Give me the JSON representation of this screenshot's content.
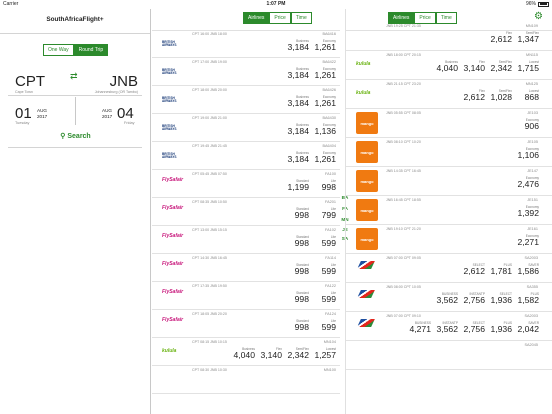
{
  "status": {
    "carrier": "Carrier",
    "time": "1:07 PM",
    "battery": "96%"
  },
  "app": {
    "title": "SouthAfricaFlight+"
  },
  "trip_type": {
    "one_way": "One Way",
    "round_trip": "Round Trip",
    "selected": "round_trip"
  },
  "route": {
    "from_code": "CPT",
    "from_city": "Cape Town",
    "to_code": "JNB",
    "to_city": "Johannesburg (OR Tambo)"
  },
  "dates": {
    "depart_day": "01",
    "depart_month": "AUG",
    "depart_year": "2017",
    "depart_weekday": "Tuesday",
    "return_day": "04",
    "return_month": "AUG",
    "return_year": "2017",
    "return_weekday": "Friday"
  },
  "search_label": "Search",
  "sort_tabs": [
    "Airlines",
    "Price",
    "Time"
  ],
  "sort_selected": "Airlines",
  "airline_index": [
    "BA",
    "FA",
    "MN",
    "JE",
    "SA"
  ],
  "outbound": [
    {
      "logo": "ba",
      "logo_text": "BRITISH AIRWAYS",
      "dep": "CPT 16:00",
      "arr": "JNB 18:00",
      "flight": "BA6416",
      "fares": [
        [
          "Business",
          "3,184"
        ],
        [
          "Economy",
          "1,261"
        ]
      ]
    },
    {
      "logo": "ba",
      "logo_text": "BRITISH AIRWAYS",
      "dep": "CPT 17:00",
      "arr": "JNB 19:00",
      "flight": "BA6422",
      "fares": [
        [
          "Business",
          "3,184"
        ],
        [
          "Economy",
          "1,261"
        ]
      ]
    },
    {
      "logo": "ba",
      "logo_text": "BRITISH AIRWAYS",
      "dep": "CPT 18:00",
      "arr": "JNB 20:00",
      "flight": "BA6426",
      "fares": [
        [
          "Business",
          "3,184"
        ],
        [
          "Economy",
          "1,261"
        ]
      ]
    },
    {
      "logo": "ba",
      "logo_text": "BRITISH AIRWAYS",
      "dep": "CPT 19:00",
      "arr": "JNB 21:00",
      "flight": "BA6430",
      "fares": [
        [
          "Business",
          "3,184"
        ],
        [
          "Economy",
          "1,136"
        ]
      ]
    },
    {
      "logo": "ba",
      "logo_text": "BRITISH AIRWAYS",
      "dep": "CPT 19:45",
      "arr": "JNB 21:45",
      "flight": "BA6404",
      "fares": [
        [
          "Business",
          "3,184"
        ],
        [
          "Economy",
          "1,261"
        ]
      ]
    },
    {
      "logo": "fs",
      "logo_text": "FlySafair",
      "dep": "CPT 05:45",
      "arr": "JNB 07:50",
      "flight": "FA100",
      "fares": [
        [
          "Standard",
          "1,199"
        ],
        [
          "Lite",
          "998"
        ]
      ]
    },
    {
      "logo": "fs",
      "logo_text": "FlySafair",
      "dep": "CPT 08:35",
      "arr": "JNB 10:50",
      "flight": "FA201",
      "fares": [
        [
          "Standard",
          "998"
        ],
        [
          "Lite",
          "799"
        ]
      ]
    },
    {
      "logo": "fs",
      "logo_text": "FlySafair",
      "dep": "CPT 13:00",
      "arr": "JNB 15:15",
      "flight": "FA102",
      "fares": [
        [
          "Standard",
          "998"
        ],
        [
          "Lite",
          "599"
        ]
      ]
    },
    {
      "logo": "fs",
      "logo_text": "FlySafair",
      "dep": "CPT 14:30",
      "arr": "JNB 16:45",
      "flight": "FA114",
      "fares": [
        [
          "Standard",
          "998"
        ],
        [
          "Lite",
          "599"
        ]
      ]
    },
    {
      "logo": "fs",
      "logo_text": "FlySafair",
      "dep": "CPT 17:35",
      "arr": "JNB 19:50",
      "flight": "FA122",
      "fares": [
        [
          "Standard",
          "998"
        ],
        [
          "Lite",
          "599"
        ]
      ]
    },
    {
      "logo": "fs",
      "logo_text": "FlySafair",
      "dep": "CPT 18:05",
      "arr": "JNB 20:20",
      "flight": "FA124",
      "fares": [
        [
          "Standard",
          "998"
        ],
        [
          "Lite",
          "599"
        ]
      ]
    },
    {
      "logo": "kulula",
      "logo_text": "kulula",
      "dep": "CPT 08:15",
      "arr": "JNB 10:15",
      "flight": "MN104",
      "fares": [
        [
          "Business",
          "4,040"
        ],
        [
          "Flex",
          "3,140"
        ],
        [
          "SemiFlex",
          "2,342"
        ],
        [
          "Lowest",
          "1,257"
        ]
      ]
    },
    {
      "logo": "",
      "logo_text": "",
      "dep": "CPT 08:30",
      "arr": "JNB 10:30",
      "flight": "MN100",
      "fares": []
    }
  ],
  "return": [
    {
      "logo": "",
      "logo_text": "",
      "dep": "JNB 19:25",
      "arr": "CPT 21:35",
      "flight": "MN109",
      "fares": [
        [
          "Flex",
          "2,612"
        ],
        [
          "SemiFlex",
          "1,347"
        ]
      ]
    },
    {
      "logo": "kulula",
      "logo_text": "kulula",
      "dep": "JNB 18:00",
      "arr": "CPT 20:15",
      "flight": "MN115",
      "fares": [
        [
          "Business",
          "4,040"
        ],
        [
          "Flex",
          "3,140"
        ],
        [
          "SemiFlex",
          "2,342"
        ],
        [
          "Lowest",
          "1,715"
        ]
      ]
    },
    {
      "logo": "kulula",
      "logo_text": "kulula",
      "dep": "JNB 21:15",
      "arr": "CPT 23:20",
      "flight": "MN125",
      "fares": [
        [
          "Flex",
          "2,612"
        ],
        [
          "SemiFlex",
          "1,028"
        ],
        [
          "Lowest",
          "868"
        ]
      ]
    },
    {
      "logo": "mango",
      "logo_text": "mango",
      "dep": "JNB 05:55",
      "arr": "CPT 08:05",
      "flight": "JE103",
      "fares": [
        [
          "Economy",
          "906"
        ]
      ]
    },
    {
      "logo": "mango",
      "logo_text": "mango",
      "dep": "JNB 08:10",
      "arr": "CPT 10:20",
      "flight": "JE105",
      "fares": [
        [
          "Economy",
          "1,106"
        ]
      ]
    },
    {
      "logo": "mango",
      "logo_text": "mango",
      "dep": "JNB 14:35",
      "arr": "CPT 16:45",
      "flight": "JE147",
      "fares": [
        [
          "Economy",
          "2,476"
        ]
      ]
    },
    {
      "logo": "mango",
      "logo_text": "mango",
      "dep": "JNB 16:45",
      "arr": "CPT 18:55",
      "flight": "JE151",
      "fares": [
        [
          "Economy",
          "1,392"
        ]
      ]
    },
    {
      "logo": "mango",
      "logo_text": "mango",
      "dep": "JNB 19:10",
      "arr": "CPT 21:20",
      "flight": "JE161",
      "fares": [
        [
          "Economy",
          "2,271"
        ]
      ]
    },
    {
      "logo": "saa",
      "logo_text": "South African Airways",
      "dep": "JNB 07:00",
      "arr": "CPT 09:05",
      "flight": "SA2003",
      "fares": [
        [
          "SELECT",
          "2,612"
        ],
        [
          "PLUS",
          "1,781"
        ],
        [
          "SAVER",
          "1,586"
        ]
      ]
    },
    {
      "logo": "saa",
      "logo_text": "South African Airways",
      "dep": "JNB 08:00",
      "arr": "CPT 10:05",
      "flight": "SA355",
      "fares": [
        [
          "BUSINESS",
          "3,562"
        ],
        [
          "INSTANTP",
          "2,756"
        ],
        [
          "SELECT",
          "1,936"
        ],
        [
          "PLUS",
          "1,582"
        ]
      ]
    },
    {
      "logo": "saa",
      "logo_text": "South African Airways",
      "dep": "JNB 07:00",
      "arr": "CPT 09:10",
      "flight": "SA2003",
      "fares": [
        [
          "BUSINESS",
          "4,271"
        ],
        [
          "INSTANTP",
          "3,562"
        ],
        [
          "SELECT",
          "2,756"
        ],
        [
          "PLUS",
          "1,936"
        ],
        [
          "SAVER",
          "2,042"
        ]
      ]
    },
    {
      "logo": "",
      "logo_text": "",
      "dep": "",
      "arr": "",
      "flight": "SA2045",
      "fares": []
    }
  ]
}
